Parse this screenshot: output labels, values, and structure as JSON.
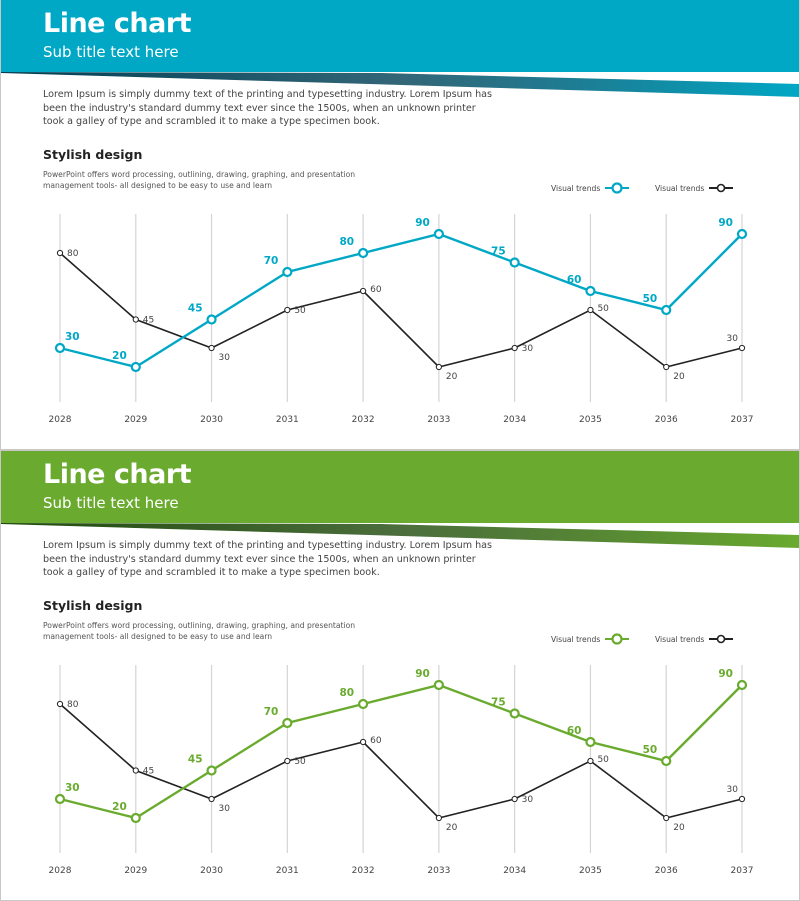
{
  "panels": [
    {
      "accent": "#00a8c6",
      "accent_dark": "#003f55",
      "title": "Line chart",
      "subtitle": "Sub title text here",
      "intro": "Lorem Ipsum is simply dummy text of the printing and typesetting industry. Lorem Ipsum has been the industry's standard dummy text ever since the 1500s, when an unknown printer took a galley of type and scrambled it to make a type specimen book.",
      "section_title": "Stylish design",
      "section_desc": "PowerPoint offers word processing, outlining, drawing, graphing, and presentation management tools- all designed to be easy to use and learn"
    },
    {
      "accent": "#6aab2f",
      "accent_dark": "#1f4a0c",
      "title": "Line chart",
      "subtitle": "Sub title text here",
      "intro": "Lorem Ipsum is simply dummy text of the printing and typesetting industry. Lorem Ipsum has been the industry's standard dummy text ever since the 1500s, when an unknown printer took a galley of type and scrambled it to make a type specimen book.",
      "section_title": "Stylish design",
      "section_desc": "PowerPoint offers word processing, outlining, drawing, graphing, and presentation management tools- all designed to be easy to use and learn"
    }
  ],
  "chart_data": [
    {
      "type": "line",
      "categories": [
        "2028",
        "2029",
        "2030",
        "2031",
        "2032",
        "2033",
        "2034",
        "2035",
        "2036",
        "2037"
      ],
      "series": [
        {
          "name": "Visual trends",
          "color": "#00a8c6",
          "values": [
            30,
            20,
            45,
            70,
            80,
            90,
            75,
            60,
            50,
            90
          ]
        },
        {
          "name": "Visual trends",
          "color": "#222222",
          "values": [
            80,
            45,
            30,
            50,
            60,
            20,
            30,
            50,
            20,
            30
          ]
        }
      ],
      "grid": "vertical",
      "legend": "top-right",
      "ylim": [
        0,
        100
      ]
    },
    {
      "type": "line",
      "categories": [
        "2028",
        "2029",
        "2030",
        "2031",
        "2032",
        "2033",
        "2034",
        "2035",
        "2036",
        "2037"
      ],
      "series": [
        {
          "name": "Visual trends",
          "color": "#6aab2f",
          "values": [
            30,
            20,
            45,
            70,
            80,
            90,
            75,
            60,
            50,
            90
          ]
        },
        {
          "name": "Visual trends",
          "color": "#222222",
          "values": [
            80,
            45,
            30,
            50,
            60,
            20,
            30,
            50,
            20,
            30
          ]
        }
      ],
      "grid": "vertical",
      "legend": "top-right",
      "ylim": [
        0,
        100
      ]
    }
  ]
}
